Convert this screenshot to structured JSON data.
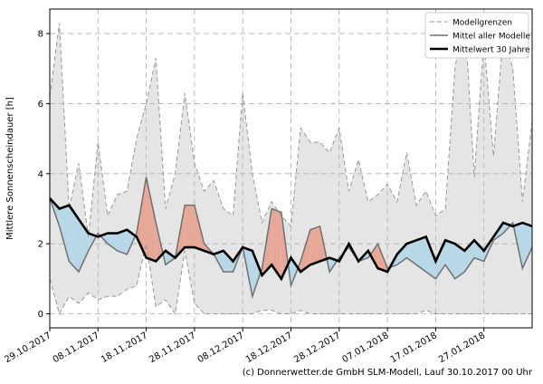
{
  "chart_data": {
    "type": "line",
    "ylabel": "Mittlere Sonnenscheindauer [h]",
    "footer": "(c) Donnerwetter.de GmbH SLM-Modell, Lauf 30.10.2017 00 Uhr",
    "x": [
      "2017-10-29",
      "2017-10-31",
      "2017-11-02",
      "2017-11-04",
      "2017-11-06",
      "2017-11-08",
      "2017-11-10",
      "2017-11-12",
      "2017-11-14",
      "2017-11-16",
      "2017-11-18",
      "2017-11-20",
      "2017-11-22",
      "2017-11-24",
      "2017-11-26",
      "2017-11-28",
      "2017-11-30",
      "2017-12-02",
      "2017-12-04",
      "2017-12-06",
      "2017-12-08",
      "2017-12-10",
      "2017-12-12",
      "2017-12-14",
      "2017-12-16",
      "2017-12-18",
      "2017-12-20",
      "2017-12-22",
      "2017-12-24",
      "2017-12-26",
      "2017-12-28",
      "2017-12-30",
      "2018-01-01",
      "2018-01-03",
      "2018-01-05",
      "2018-01-07",
      "2018-01-09",
      "2018-01-11",
      "2018-01-13",
      "2018-01-15",
      "2018-01-17",
      "2018-01-19",
      "2018-01-21",
      "2018-01-23",
      "2018-01-25",
      "2018-01-27",
      "2018-01-29",
      "2018-01-31",
      "2018-02-02",
      "2018-02-04",
      "2018-02-06"
    ],
    "range": {
      "name": "Modellgrenzen",
      "color": "#999999",
      "fill": "#e5e5e5",
      "upper": [
        6.2,
        8.3,
        3.0,
        4.3,
        2.2,
        4.9,
        2.8,
        3.4,
        3.5,
        5.0,
        6.0,
        7.3,
        3.0,
        4.0,
        6.3,
        4.3,
        3.5,
        3.8,
        3.0,
        2.8,
        6.3,
        4.0,
        2.6,
        3.2,
        2.8,
        2.5,
        5.3,
        4.9,
        4.9,
        4.6,
        5.3,
        3.5,
        4.4,
        3.2,
        3.4,
        3.7,
        3.2,
        4.6,
        3.1,
        3.5,
        2.8,
        3.0,
        7.0,
        8.6,
        3.9,
        7.8,
        4.5,
        8.0,
        7.0,
        3.2,
        5.5
      ],
      "lower": [
        1.0,
        0.0,
        0.5,
        0.3,
        0.6,
        0.4,
        0.5,
        0.5,
        0.7,
        0.8,
        2.0,
        0.2,
        0.4,
        0.0,
        1.8,
        0.3,
        0.0,
        0.0,
        0.0,
        0.0,
        0.0,
        0.0,
        0.1,
        0.1,
        0.0,
        0.0,
        0.1,
        0.0,
        0.0,
        0.0,
        0.0,
        0.0,
        0.0,
        0.0,
        0.0,
        0.0,
        0.0,
        0.0,
        0.0,
        0.1,
        0.0,
        0.0,
        0.0,
        0.0,
        0.0,
        0.0,
        0.0,
        0.0,
        0.0,
        0.0,
        0.0
      ]
    },
    "series": [
      {
        "name": "Mittel aller Modelle",
        "color": "#707070",
        "values": [
          3.3,
          2.5,
          1.5,
          1.2,
          1.8,
          2.3,
          2.0,
          1.8,
          1.7,
          2.3,
          3.9,
          2.6,
          1.4,
          1.6,
          3.1,
          3.1,
          2.0,
          1.7,
          1.2,
          1.2,
          1.9,
          0.5,
          1.3,
          3.0,
          2.9,
          0.8,
          1.5,
          2.4,
          2.5,
          1.2,
          1.6,
          1.9,
          1.5,
          1.6,
          2.0,
          1.3,
          1.4,
          1.6,
          1.4,
          1.2,
          1.0,
          1.4,
          1.0,
          1.2,
          1.6,
          1.5,
          2.1,
          2.3,
          2.6,
          1.3,
          1.9
        ]
      },
      {
        "name": "Mittelwert 30 Jahre",
        "color": "#000000",
        "values": [
          3.3,
          3.0,
          3.1,
          2.7,
          2.3,
          2.2,
          2.3,
          2.3,
          2.4,
          2.2,
          1.6,
          1.5,
          1.8,
          1.6,
          1.9,
          1.9,
          1.8,
          1.7,
          1.8,
          1.5,
          1.9,
          1.8,
          1.1,
          1.4,
          1.0,
          1.6,
          1.2,
          1.4,
          1.5,
          1.6,
          1.5,
          2.0,
          1.5,
          1.8,
          1.3,
          1.2,
          1.7,
          2.0,
          2.1,
          2.2,
          1.5,
          2.1,
          2.0,
          1.8,
          2.1,
          1.8,
          2.2,
          2.6,
          2.5,
          2.6,
          2.5
        ]
      }
    ],
    "above_color": "#e8a898",
    "below_color": "#b8d8e8",
    "xlim": [
      "2017-10-29",
      "2018-02-06"
    ],
    "xticks": [
      {
        "value": "2017-10-29",
        "label": "29.10.2017"
      },
      {
        "value": "2017-11-08",
        "label": "08.11.2017"
      },
      {
        "value": "2017-11-18",
        "label": "18.11.2017"
      },
      {
        "value": "2017-11-28",
        "label": "28.11.2017"
      },
      {
        "value": "2017-12-08",
        "label": "08.12.2017"
      },
      {
        "value": "2017-12-18",
        "label": "18.12.2017"
      },
      {
        "value": "2017-12-28",
        "label": "28.12.2017"
      },
      {
        "value": "2018-01-07",
        "label": "07.01.2018"
      },
      {
        "value": "2018-01-17",
        "label": "17.01.2018"
      },
      {
        "value": "2018-01-27",
        "label": "27.01.2018"
      }
    ],
    "ylim": [
      -0.4,
      8.7
    ],
    "yticks": [
      0,
      2,
      4,
      6,
      8
    ],
    "grid": true,
    "legend": "upper right"
  }
}
